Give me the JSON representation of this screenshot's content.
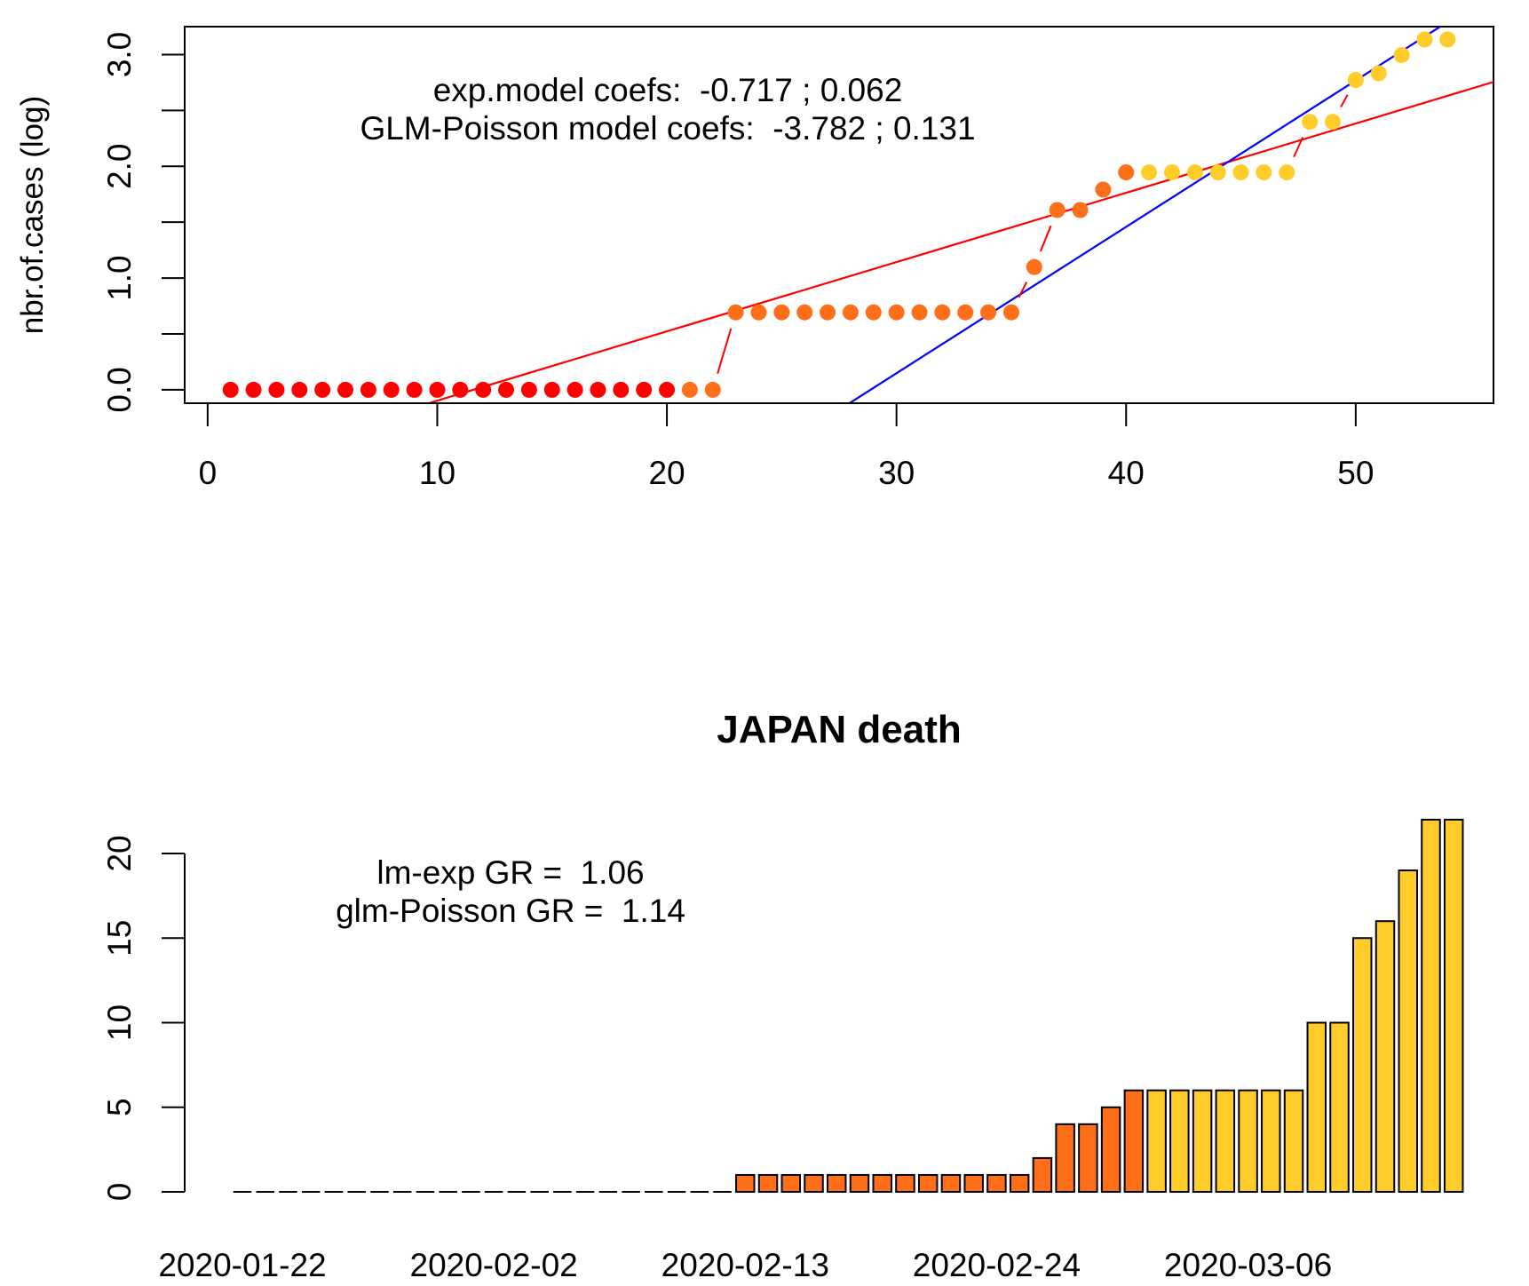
{
  "chart_data": [
    {
      "type": "scatter",
      "title": "",
      "ylabel": "nbr.of.cases (log)",
      "xlabel": "",
      "xlim": [
        -1,
        56
      ],
      "ylim": [
        -0.12,
        3.25
      ],
      "x_ticks": [
        0,
        10,
        20,
        30,
        40,
        50
      ],
      "y_ticks": [
        0.0,
        1.0,
        2.0,
        3.0
      ],
      "y_minor_ticks": [
        0.5,
        1.5,
        2.5
      ],
      "y_tick_labels": [
        "0.0",
        "1.0",
        "2.0",
        "3.0"
      ],
      "annotations": [
        "exp.model coefs:  -0.717 ; 0.062",
        "GLM-Poisson model coefs:  -3.782 ; 0.131"
      ],
      "points": {
        "x": [
          1,
          2,
          3,
          4,
          5,
          6,
          7,
          8,
          9,
          10,
          11,
          12,
          13,
          14,
          15,
          16,
          17,
          18,
          19,
          20,
          21,
          22,
          23,
          24,
          25,
          26,
          27,
          28,
          29,
          30,
          31,
          32,
          33,
          34,
          35,
          36,
          37,
          38,
          39,
          40,
          41,
          42,
          43,
          44,
          45,
          46,
          47,
          48,
          49,
          50,
          51,
          52,
          53,
          54
        ],
        "y": [
          0,
          0,
          0,
          0,
          0,
          0,
          0,
          0,
          0,
          0,
          0,
          0,
          0,
          0,
          0,
          0,
          0,
          0,
          0,
          0,
          0,
          0,
          0.693,
          0.693,
          0.693,
          0.693,
          0.693,
          0.693,
          0.693,
          0.693,
          0.693,
          0.693,
          0.693,
          0.693,
          0.693,
          1.099,
          1.609,
          1.609,
          1.792,
          1.946,
          1.946,
          1.946,
          1.946,
          1.946,
          1.946,
          1.946,
          1.946,
          2.398,
          2.398,
          2.773,
          2.833,
          2.996,
          3.135,
          3.135
        ],
        "colors": [
          "#ff0000",
          "#ff0000",
          "#ff0000",
          "#ff0000",
          "#ff0000",
          "#ff0000",
          "#ff0000",
          "#ff0000",
          "#ff0000",
          "#ff0000",
          "#ff0000",
          "#ff0000",
          "#ff0000",
          "#ff0000",
          "#ff0000",
          "#ff0000",
          "#ff0000",
          "#ff0000",
          "#ff0000",
          "#ff0000",
          "#ff6f1a",
          "#ff6f1a",
          "#ff6f1a",
          "#ff6f1a",
          "#ff6f1a",
          "#ff6f1a",
          "#ff6f1a",
          "#ff6f1a",
          "#ff6f1a",
          "#ff6f1a",
          "#ff6f1a",
          "#ff6f1a",
          "#ff6f1a",
          "#ff6f1a",
          "#ff6f1a",
          "#ff6f1a",
          "#ff6f1a",
          "#ff6f1a",
          "#ff6f1a",
          "#ff6f1a",
          "#ffcc2a",
          "#ffcc2a",
          "#ffcc2a",
          "#ffcc2a",
          "#ffcc2a",
          "#ffcc2a",
          "#ffcc2a",
          "#ffcc2a",
          "#ffcc2a",
          "#ffcc2a",
          "#ffcc2a",
          "#ffcc2a",
          "#ffcc2a",
          "#ffcc2a"
        ]
      },
      "fit_lines": [
        {
          "color": "#ff0000",
          "intercept": -0.717,
          "slope": 0.062
        },
        {
          "color": "#0000ff",
          "intercept": -3.782,
          "slope": 0.131
        }
      ],
      "connector_color": "#ff0000"
    },
    {
      "type": "bar",
      "title": "JAPAN death",
      "xlabel": "",
      "ylabel": "",
      "ylim": [
        0,
        22
      ],
      "y_ticks": [
        0,
        5,
        10,
        15,
        20
      ],
      "x_tick_labels": [
        "2020-01-22",
        "2020-02-02",
        "2020-02-13",
        "2020-02-24",
        "2020-03-06"
      ],
      "x_tick_indices": [
        0,
        11,
        22,
        33,
        44
      ],
      "annotations": [
        "lm-exp GR =  1.06",
        "glm-Poisson GR =  1.14"
      ],
      "values": [
        0,
        0,
        0,
        0,
        0,
        0,
        0,
        0,
        0,
        0,
        0,
        0,
        0,
        0,
        0,
        0,
        0,
        0,
        0,
        0,
        0,
        0,
        1,
        1,
        1,
        1,
        1,
        1,
        1,
        1,
        1,
        1,
        1,
        1,
        1,
        2,
        4,
        4,
        5,
        6,
        6,
        6,
        6,
        6,
        6,
        6,
        6,
        10,
        10,
        15,
        16,
        19,
        22,
        22
      ],
      "colors": [
        "#ff0000",
        "#ff0000",
        "#ff0000",
        "#ff0000",
        "#ff0000",
        "#ff0000",
        "#ff0000",
        "#ff0000",
        "#ff0000",
        "#ff0000",
        "#ff0000",
        "#ff0000",
        "#ff0000",
        "#ff0000",
        "#ff0000",
        "#ff0000",
        "#ff0000",
        "#ff0000",
        "#ff0000",
        "#ff0000",
        "#ff6f1a",
        "#ff6f1a",
        "#ff6f1a",
        "#ff6f1a",
        "#ff6f1a",
        "#ff6f1a",
        "#ff6f1a",
        "#ff6f1a",
        "#ff6f1a",
        "#ff6f1a",
        "#ff6f1a",
        "#ff6f1a",
        "#ff6f1a",
        "#ff6f1a",
        "#ff6f1a",
        "#ff6f1a",
        "#ff6f1a",
        "#ff6f1a",
        "#ff6f1a",
        "#ff6f1a",
        "#ffcc2a",
        "#ffcc2a",
        "#ffcc2a",
        "#ffcc2a",
        "#ffcc2a",
        "#ffcc2a",
        "#ffcc2a",
        "#ffcc2a",
        "#ffcc2a",
        "#ffcc2a",
        "#ffcc2a",
        "#ffcc2a",
        "#ffcc2a",
        "#ffcc2a"
      ]
    }
  ]
}
